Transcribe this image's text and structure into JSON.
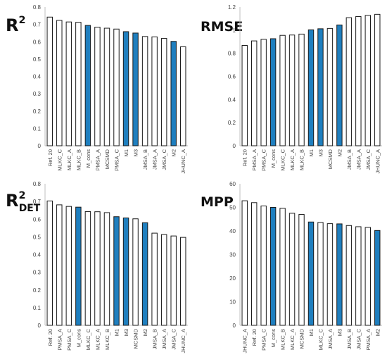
{
  "colors": {
    "highlight": "#1f7fbf",
    "plain": "#ffffff",
    "outline": "#1a1a1a"
  },
  "chart_data": [
    {
      "type": "bar",
      "title": "R",
      "title_sup": "2",
      "title_sub": "",
      "ylim": [
        0,
        0.8
      ],
      "yticks": [
        "0",
        "0.1",
        "0.2",
        "0.3",
        "0.4",
        "0.5",
        "0.6",
        "0.7",
        "0.8"
      ],
      "categories": [
        "Ref. 20",
        "MLKC_C",
        "MLKC_A",
        "MLKC_B",
        "M_cons",
        "PMSA_A",
        "MCSMD",
        "PMSA_C",
        "M1",
        "M3",
        "JMSA_B",
        "JMSA_A",
        "JMSA_C",
        "M2",
        "JHUNC_A"
      ],
      "values": [
        0.742,
        0.723,
        0.714,
        0.712,
        0.694,
        0.684,
        0.678,
        0.673,
        0.658,
        0.65,
        0.63,
        0.628,
        0.619,
        0.602,
        0.571
      ],
      "highlighted": [
        "M_cons",
        "M1",
        "M3",
        "M2"
      ],
      "grid": false
    },
    {
      "type": "bar",
      "title": "RMSE",
      "title_sup": "",
      "title_sub": "",
      "ylim": [
        0,
        1.2
      ],
      "yticks": [
        "0",
        "0.2",
        "0.4",
        "0.6",
        "0.8",
        "1",
        "1.2"
      ],
      "categories": [
        "Ref. 20",
        "PMSA_A",
        "PMSA_C",
        "M_cons",
        "MLKC_C",
        "MLKC_A",
        "MLKC_B",
        "M1",
        "M3",
        "MCSMD",
        "M2",
        "JMSA_B",
        "JMSA_A",
        "JMSA_C",
        "JHUNC_A"
      ],
      "values": [
        0.868,
        0.907,
        0.921,
        0.926,
        0.955,
        0.958,
        0.966,
        1.003,
        1.012,
        1.015,
        1.045,
        1.108,
        1.118,
        1.128,
        1.137
      ],
      "highlighted": [
        "M_cons",
        "M1",
        "M3",
        "M2"
      ],
      "grid": false
    },
    {
      "type": "bar",
      "title": "R",
      "title_sup": "2",
      "title_sub": "DET",
      "ylim": [
        0,
        0.8
      ],
      "yticks": [
        "0",
        "0.1",
        "0.2",
        "0.3",
        "0.4",
        "0.5",
        "0.6",
        "0.7",
        "0.8"
      ],
      "categories": [
        "Ref. 20",
        "PMSA_A",
        "PMSA_C",
        "M_cons",
        "MLKC_C",
        "MLKC_A",
        "MLKC_B",
        "M1",
        "M3",
        "MCSMD",
        "M2",
        "JMSA_B",
        "JMSA_A",
        "JMSA_C",
        "JHUNC_A"
      ],
      "values": [
        0.703,
        0.681,
        0.672,
        0.668,
        0.643,
        0.642,
        0.637,
        0.614,
        0.607,
        0.602,
        0.58,
        0.521,
        0.513,
        0.505,
        0.497
      ],
      "highlighted": [
        "M_cons",
        "M1",
        "M3",
        "M2"
      ],
      "grid": false
    },
    {
      "type": "bar",
      "title": "MPP",
      "title_sup": "",
      "title_sub": "",
      "ylim": [
        0,
        60
      ],
      "yticks": [
        "0",
        "10",
        "20",
        "30",
        "40",
        "50",
        "60"
      ],
      "categories": [
        "JHUNC_A",
        "Ref. 20",
        "PMSA_C",
        "M_cons",
        "MLKC_B",
        "MLKC_A",
        "MCSMD",
        "M1",
        "MLKC_C",
        "JMSA_A",
        "M3",
        "JMSA_B",
        "JMSA_C",
        "PMSA_A",
        "M2"
      ],
      "values": [
        52.8,
        52.0,
        50.6,
        50.0,
        49.6,
        47.5,
        47.0,
        43.8,
        43.6,
        43.1,
        43.0,
        42.3,
        41.8,
        41.5,
        40.2
      ],
      "highlighted": [
        "M_cons",
        "M1",
        "M3",
        "M2"
      ],
      "grid": false
    }
  ]
}
